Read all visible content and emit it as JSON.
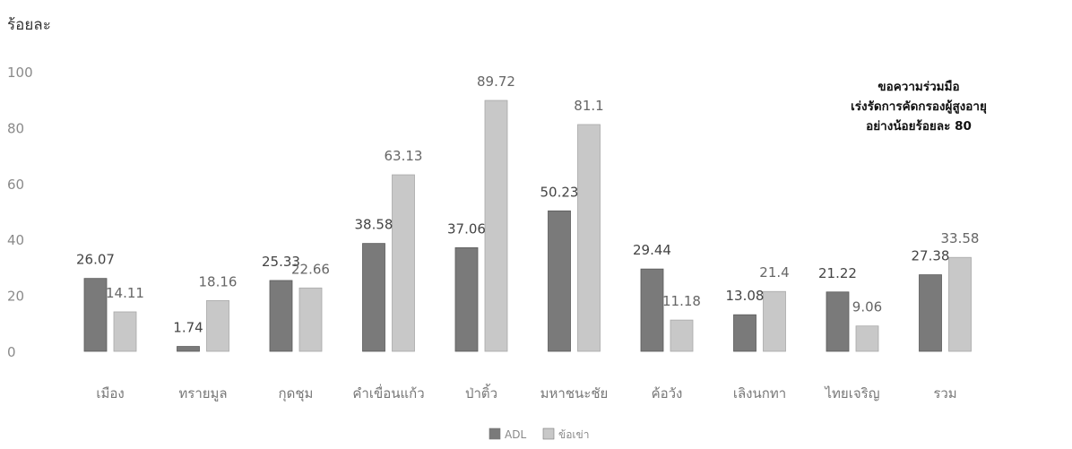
{
  "chart_data": {
    "type": "bar",
    "title": "",
    "ylabel": "ร้อยละ",
    "xlabel": "",
    "ylim": [
      0,
      100
    ],
    "yticks": [
      0,
      20,
      40,
      60,
      80,
      100
    ],
    "grid": false,
    "legend_position": "bottom",
    "categories": [
      "เมือง",
      "ทรายมูล",
      "กุดชุม",
      "คำเขื่อนแก้ว",
      "ป่าติ้ว",
      "มหาชนะชัย",
      "ค้อวัง",
      "เลิงนกทา",
      "ไทยเจริญ",
      "รวม"
    ],
    "series": [
      {
        "name": "ADL",
        "color": "#7a7a7a",
        "values": [
          26.07,
          1.74,
          25.33,
          38.58,
          37.06,
          50.23,
          29.44,
          13.08,
          21.22,
          27.38
        ]
      },
      {
        "name": "ข้อเข่า",
        "color": "#c8c8c8",
        "values": [
          14.11,
          18.16,
          22.66,
          63.13,
          89.72,
          81.1,
          11.18,
          21.4,
          9.06,
          33.58
        ]
      }
    ],
    "annotation": [
      "ขอความร่วมมือ",
      "เร่งรัดการคัดกรองผู้สูงอายุ",
      "อย่างน้อยร้อยละ 80"
    ]
  }
}
